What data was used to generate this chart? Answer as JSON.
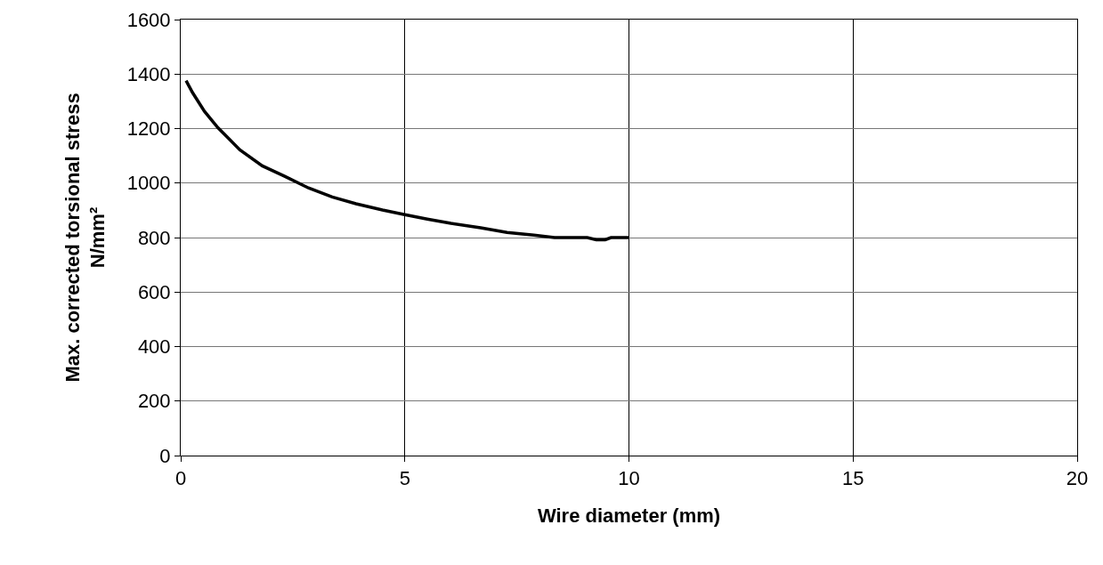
{
  "chart_data": {
    "type": "line",
    "xlabel": "Wire diameter (mm)",
    "ylabel": "Max. corrected torsional stress\nN/mm²",
    "series": [
      {
        "color": "#000000",
        "x": [
          0.12,
          0.26,
          0.53,
          0.83,
          1.32,
          1.82,
          2.32,
          2.85,
          3.38,
          3.91,
          4.5,
          5.0,
          5.5,
          6.03,
          6.69,
          7.28,
          7.88,
          8.34,
          9.07,
          9.27,
          9.47,
          9.6,
          10.0
        ],
        "values": [
          1376,
          1333,
          1263,
          1203,
          1122,
          1063,
          1025,
          982,
          949,
          924,
          901,
          884,
          868,
          852,
          836,
          819,
          809,
          800,
          800,
          792,
          792,
          800,
          800
        ]
      }
    ],
    "xlim": [
      0,
      20
    ],
    "xticks": [
      0,
      5,
      10,
      15,
      20
    ],
    "ylim": [
      0,
      1600
    ],
    "yticks": [
      0,
      200,
      400,
      600,
      800,
      1000,
      1200,
      1400,
      1600
    ],
    "grid": true,
    "marker": "none",
    "line_style": "solid"
  }
}
